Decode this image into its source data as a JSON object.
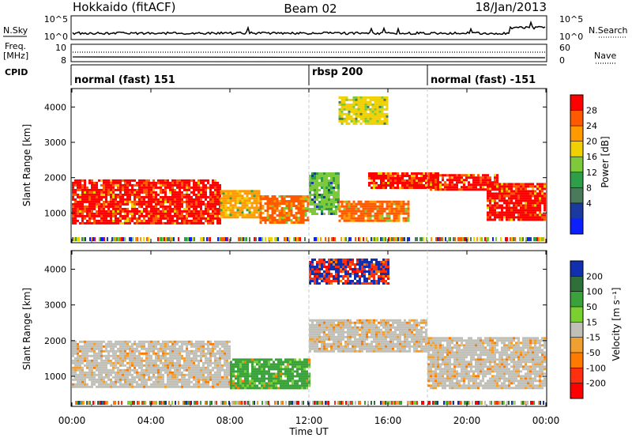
{
  "header": {
    "left": "Hokkaido (fitACF)",
    "center": "Beam 02",
    "right": "18/Jan/2013"
  },
  "noise_panel": {
    "left_label": "N.Sky",
    "right_label": "N.Search",
    "ticks_left": [
      "10^5",
      "10^0"
    ],
    "ticks_right": [
      "10^5",
      "10^0"
    ]
  },
  "freq_panel": {
    "left_label_1": "Freq.",
    "left_label_2": "[MHz]",
    "ticks_left": [
      "10",
      "8"
    ],
    "ticks_right": [
      "60",
      "0"
    ],
    "right_label": "Nave"
  },
  "cpid_panel": {
    "label": "CPID",
    "segments": [
      {
        "name": "normal (fast) 151",
        "start_h": 0,
        "end_h": 12
      },
      {
        "name": "rbsp 200",
        "start_h": 12,
        "end_h": 18
      },
      {
        "name": "normal (fast) -151",
        "start_h": 18,
        "end_h": 24
      }
    ]
  },
  "power_panel": {
    "ylabel": "Slant Range [km]",
    "yticks": [
      1000,
      2000,
      3000,
      4000
    ],
    "colorbar_label": "Power [dB]",
    "colorbar_ticks": [
      "28",
      "24",
      "20",
      "16",
      "12",
      "8",
      "4"
    ],
    "colors": [
      "#ff0000",
      "#ff5a00",
      "#ff9a00",
      "#f0d000",
      "#7ec83c",
      "#2f9e48",
      "#4a7a5a",
      "#1a3aa0",
      "#0b1fff"
    ]
  },
  "velocity_panel": {
    "ylabel": "Slant Range [km]",
    "yticks": [
      1000,
      2000,
      3000,
      4000
    ],
    "colorbar_label": "Velocity [m s⁻¹]",
    "colorbar_ticks": [
      "200",
      "100",
      "50",
      "15",
      "-15",
      "-50",
      "-100",
      "-200"
    ],
    "colors": [
      "#1030b0",
      "#2f6f3a",
      "#3aa23a",
      "#7ad030",
      "#c0c0b8",
      "#f0a030",
      "#ff7a00",
      "#ff3010",
      "#ff0000"
    ]
  },
  "xaxis": {
    "ticks": [
      "00:00",
      "04:00",
      "08:00",
      "12:00",
      "16:00",
      "20:00",
      "00:00"
    ],
    "label": "Time UT"
  },
  "chart_data": {
    "type": "heatmap",
    "x_unit": "hours UT",
    "xlim": [
      0,
      24
    ],
    "ylim_km": [
      180,
      4500
    ],
    "power_patches": [
      {
        "t": [
          0.0,
          7.5
        ],
        "r": [
          700,
          1950
        ],
        "db": 28
      },
      {
        "t": [
          7.5,
          9.5
        ],
        "r": [
          900,
          1650
        ],
        "db": 20
      },
      {
        "t": [
          9.5,
          12.0
        ],
        "r": [
          700,
          1500
        ],
        "db": 22
      },
      {
        "t": [
          12.0,
          13.5
        ],
        "r": [
          1000,
          2150
        ],
        "db": 14
      },
      {
        "t": [
          13.5,
          17.0
        ],
        "r": [
          800,
          1350
        ],
        "db": 24
      },
      {
        "t": [
          15.0,
          18.5
        ],
        "r": [
          1700,
          2150
        ],
        "db": 26
      },
      {
        "t": [
          18.0,
          21.5
        ],
        "r": [
          1650,
          2100
        ],
        "db": 28
      },
      {
        "t": [
          21.0,
          24.0
        ],
        "r": [
          800,
          1850
        ],
        "db": 28
      },
      {
        "t": [
          13.5,
          16.0
        ],
        "r": [
          3500,
          4300
        ],
        "db": 16
      }
    ],
    "velocity_patches": [
      {
        "t": [
          0.0,
          8.0
        ],
        "r": [
          700,
          2000
        ],
        "v": -10
      },
      {
        "t": [
          8.0,
          12.0
        ],
        "r": [
          700,
          1500
        ],
        "v": 40
      },
      {
        "t": [
          12.0,
          18.0
        ],
        "r": [
          1700,
          2600
        ],
        "v": -10
      },
      {
        "t": [
          12.0,
          16.0
        ],
        "r": [
          3600,
          4300
        ],
        "v": 150
      },
      {
        "t": [
          18.0,
          24.0
        ],
        "r": [
          700,
          2100
        ],
        "v": -10
      }
    ]
  }
}
